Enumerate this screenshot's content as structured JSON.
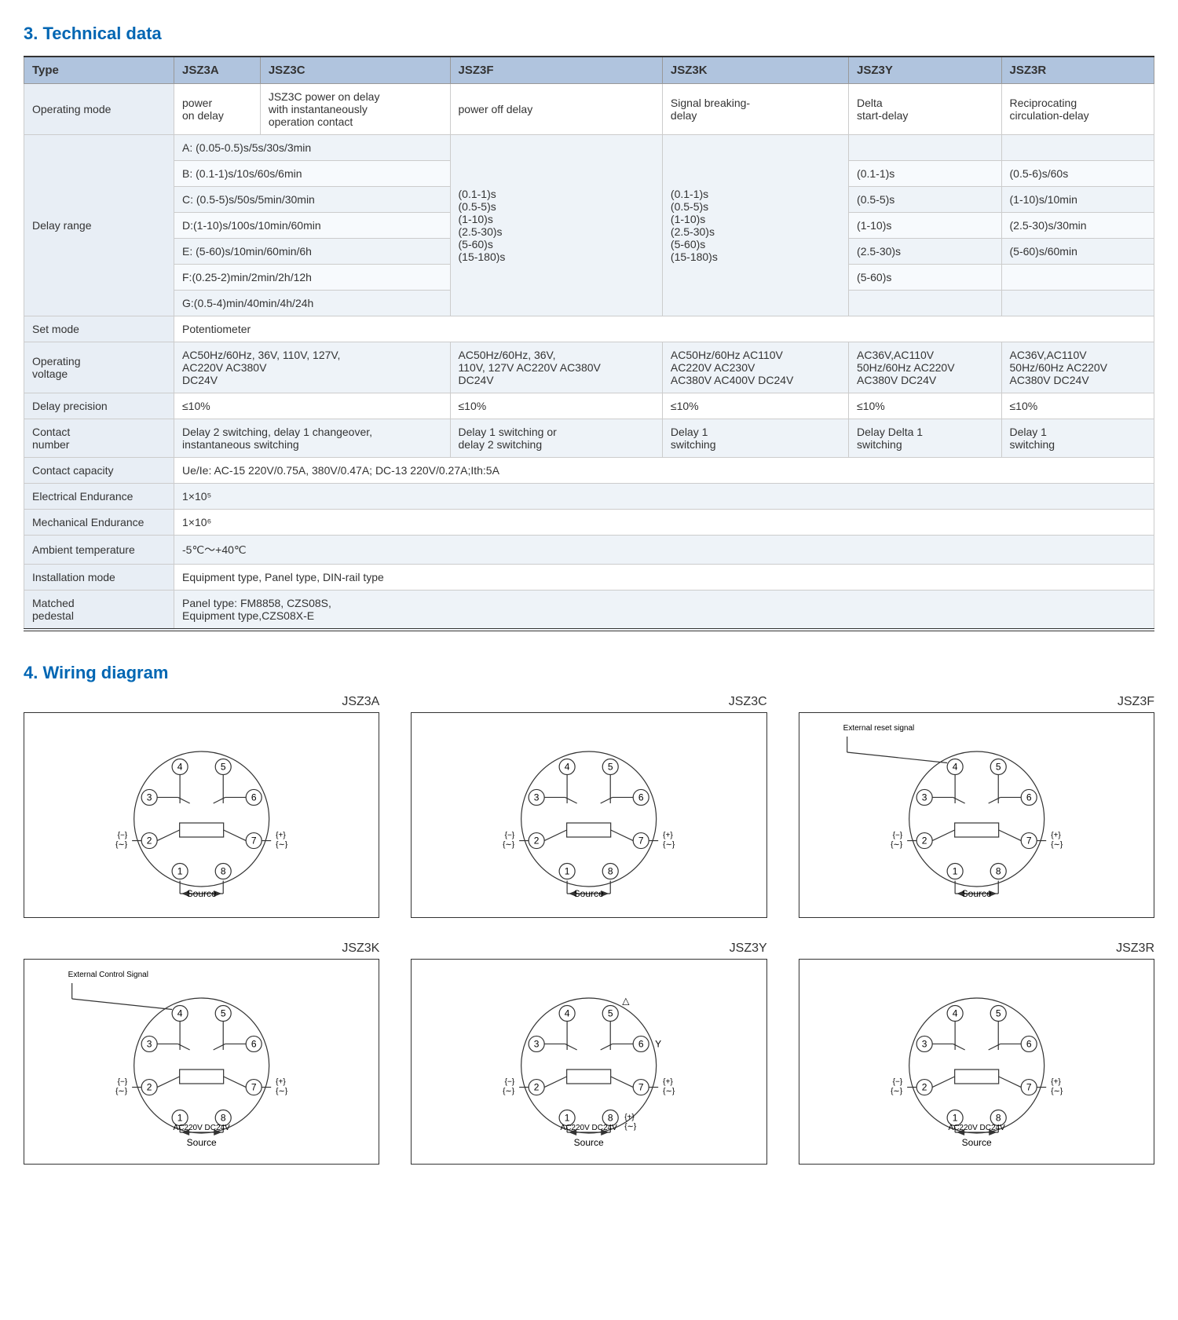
{
  "section3": {
    "title": "3. Technical data",
    "headers": [
      "Type",
      "JSZ3A",
      "JSZ3C",
      "JSZ3F",
      "JSZ3K",
      "JSZ3Y",
      "JSZ3R"
    ],
    "rows": {
      "operating_mode": {
        "label": "Operating mode",
        "jsz3a": "power\non delay",
        "jsz3c": "JSZ3C power on delay\nwith instantaneously\noperation contact",
        "jsz3f": "power off delay",
        "jsz3k": "Signal breaking-\ndelay",
        "jsz3y": "Delta\nstart-delay",
        "jsz3r": "Reciprocating\ncirculation-delay"
      },
      "delay_range": {
        "label": "Delay range",
        "col_ac": [
          "A: (0.05-0.5)s/5s/30s/3min",
          "B: (0.1-1)s/10s/60s/6min",
          "C: (0.5-5)s/50s/5min/30min",
          "D:(1-10)s/100s/10min/60min",
          "E: (5-60)s/10min/60min/6h",
          "F:(0.25-2)min/2min/2h/12h",
          "G:(0.5-4)min/40min/4h/24h"
        ],
        "col_f": "(0.1-1)s\n(0.5-5)s\n(1-10)s\n(2.5-30)s\n(5-60)s\n(15-180)s",
        "col_k": "(0.1-1)s\n(0.5-5)s\n(1-10)s\n(2.5-30)s\n(5-60)s\n(15-180)s",
        "col_y": [
          "",
          "(0.1-1)s",
          "(0.5-5)s",
          "(1-10)s",
          "(2.5-30)s",
          "(5-60)s",
          ""
        ],
        "col_r": [
          "",
          "(0.5-6)s/60s",
          "(1-10)s/10min",
          "(2.5-30)s/30min",
          "(5-60)s/60min",
          "",
          ""
        ]
      },
      "set_mode": {
        "label": "Set mode",
        "value": "Potentiometer"
      },
      "operating_voltage": {
        "label": "Operating\nvoltage",
        "jsz3ac": "AC50Hz/60Hz, 36V, 110V, 127V,\nAC220V  AC380V\nDC24V",
        "jsz3f": "AC50Hz/60Hz, 36V,\n110V, 127V AC220V AC380V\n DC24V",
        "jsz3k": "AC50Hz/60Hz  AC110V\nAC220V  AC230V\nAC380V AC400V DC24V",
        "jsz3y": "AC36V,AC110V\n50Hz/60Hz AC220V\nAC380V  DC24V",
        "jsz3r": "AC36V,AC110V\n50Hz/60Hz AC220V\nAC380V  DC24V"
      },
      "delay_precision": {
        "label": "Delay precision",
        "jsz3ac": "≤10%",
        "jsz3f": "≤10%",
        "jsz3k": "≤10%",
        "jsz3y": "≤10%",
        "jsz3r": "≤10%"
      },
      "contact_number": {
        "label": "Contact\nnumber",
        "jsz3ac": "Delay 2 switching, delay 1 changeover,\ninstantaneous switching",
        "jsz3f": "Delay 1 switching or\ndelay 2 switching",
        "jsz3k": "Delay 1\nswitching",
        "jsz3y": "Delay Delta 1\nswitching",
        "jsz3r": "Delay 1\nswitching"
      },
      "contact_capacity": {
        "label": "Contact capacity",
        "value": "Ue/Ie: AC-15 220V/0.75A, 380V/0.47A; DC-13 220V/0.27A;Ith:5A"
      },
      "electrical_endurance": {
        "label": "Electrical Endurance",
        "value": "1×10⁵"
      },
      "mechanical_endurance": {
        "label": "Mechanical Endurance",
        "value": "1×10⁶"
      },
      "ambient_temperature": {
        "label": "Ambient temperature",
        "value": "-5℃～+40℃"
      },
      "installation_mode": {
        "label": "Installation mode",
        "value": "Equipment type, Panel type, DIN-rail type"
      },
      "matched_pedestal": {
        "label": "Matched\npedestal",
        "value": "Panel type: FM8858, CZS08S,\nEquipment type,CZS08X-E"
      }
    }
  },
  "section4": {
    "title": "4. Wiring diagram",
    "diagrams": [
      {
        "title": "JSZ3A",
        "note": "",
        "source": "Source",
        "sigL": "{−}\n{∼}",
        "sigR": "{+}\n{∼}",
        "bottom": ""
      },
      {
        "title": "JSZ3C",
        "note": "",
        "source": "Source",
        "sigL": "{−}\n{∼}",
        "sigR": "{+}\n{∼}",
        "bottom": ""
      },
      {
        "title": "JSZ3F",
        "note": "External reset signal",
        "source": "Source",
        "sigL": "{−}\n{∼}",
        "sigR": "{+}\n{∼}",
        "bottom": ""
      },
      {
        "title": "JSZ3K",
        "note": "External Control Signal",
        "source": "Source",
        "sigL": "{−}\n{∼}",
        "sigR": "{+}\n{∼}",
        "bottom": "AC220V DC24V"
      },
      {
        "title": "JSZ3Y",
        "note": "",
        "source": "Source",
        "sigL": "{−}\n{∼}",
        "sigR": "{+}\n{∼}",
        "bottom": "AC220V DC24V",
        "extra": "△  Y"
      },
      {
        "title": "JSZ3R",
        "note": "",
        "source": "Source",
        "sigL": "{−}\n{∼}",
        "sigR": "{+}\n{∼}",
        "bottom": "AC220V DC24V"
      }
    ]
  }
}
